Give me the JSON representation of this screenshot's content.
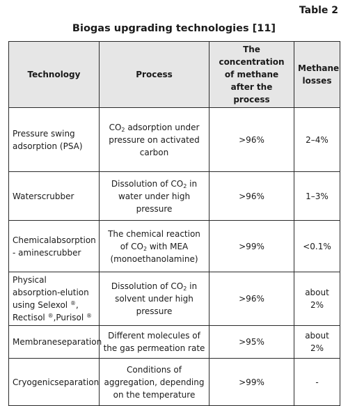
{
  "table_number": "Table 2",
  "title": "Biogas upgrading technologies [11]",
  "headers": {
    "technology": "Technology",
    "process": "Process",
    "concentration": "The concentration of methane after the process",
    "losses": "Methane losses"
  },
  "rows": [
    {
      "tech": "Pressure swing adsorption (PSA)",
      "proc_a": "CO",
      "proc_sub": "2",
      "proc_b": " adsorption under pressure on activated carbon",
      "conc": ">96%",
      "loss": "2–4%"
    },
    {
      "tech": "Waterscrubber",
      "proc_a": "Dissolution of CO",
      "proc_sub": "2",
      "proc_b": " in water under high pressure",
      "conc": ">96%",
      "loss": "1–3%"
    },
    {
      "tech": "Chemicalabsorption - aminescrubber",
      "proc_a": "The chemical reaction of CO",
      "proc_sub": "2",
      "proc_b": " with MEA (monoethanolamine)",
      "conc": ">99%",
      "loss": "<0.1%"
    },
    {
      "tech_a": "Physical absorption-elution using Selexol",
      "tech_sup1": "®",
      "tech_b": ", Rectisol",
      "tech_sup2": "®",
      "tech_c": ",Purisol",
      "tech_sup3": "®",
      "proc_a": "Dissolution of CO",
      "proc_sub": "2",
      "proc_b": " in solvent under high pressure",
      "conc": ">96%",
      "loss": "about 2%"
    },
    {
      "tech": "Membraneseparation",
      "proc": "Different molecules of the gas permeation rate",
      "conc": ">95%",
      "loss": "about 2%"
    },
    {
      "tech": "Cryogenicseparation",
      "proc": "Conditions of aggregation, depending on the temperature",
      "conc": ">99%",
      "loss": "-"
    }
  ]
}
